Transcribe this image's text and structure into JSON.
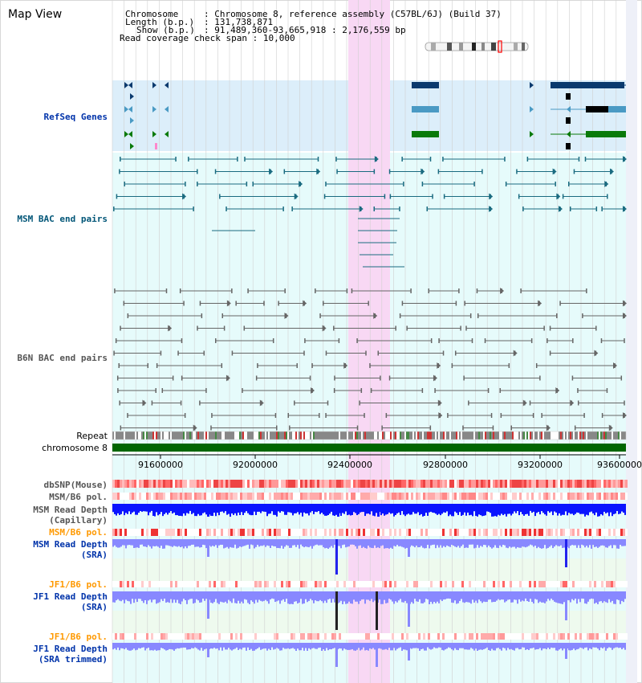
{
  "app_title": "Map View",
  "header": {
    "chromosome_label": "Chromosome",
    "chromosome_value": "Chromosome 8, reference assembly (C57BL/6J) (Build 37)",
    "length_label": "Length (b.p.)",
    "length_value": "131,738,871",
    "show_label": "Show (b.p.)",
    "show_value": "91,489,360-93,665,918 : 2,176,559 bp",
    "coverage_label": "Read coverage check span",
    "coverage_value": "10,000"
  },
  "tracks": {
    "refseq": "RefSeq Genes",
    "msm_bac": "MSM BAC end pairs",
    "b6n_bac": "B6N BAC end pairs",
    "repeat": "Repeat",
    "chromosome": "chromosome 8",
    "dbsnp": "dbSNP(Mouse)",
    "msm_b6_pol_1": "MSM/B6 pol.",
    "msm_read_depth_cap_1": "MSM Read Depth",
    "msm_read_depth_cap_2": "(Capillary)",
    "msm_b6_pol_2": "MSM/B6 pol.",
    "msm_read_depth_sra_1": "MSM Read Depth",
    "msm_read_depth_sra_2": "(SRA)",
    "jf1_b6_pol_1": "JF1/B6 pol.",
    "jf1_read_depth_sra_1": "JF1 Read Depth",
    "jf1_read_depth_sra_2": "(SRA)",
    "jf1_b6_pol_2": "JF1/B6 pol.",
    "jf1_read_depth_trim_1": "JF1 Read Depth",
    "jf1_read_depth_trim_2": "(SRA trimmed)"
  },
  "axis_ticks": [
    "91600000",
    "92000000",
    "92400000",
    "92800000",
    "93200000",
    "93600000"
  ],
  "colors": {
    "refseq_bg": "#dceefa",
    "track_bg": "#e6fbfb",
    "highlight": "#f8d8f4",
    "msm_bac": "#1a6b80",
    "b6n_bac": "#666666",
    "depth_blue": "#0a14ff",
    "depth_light": "#8888ff",
    "chromosome_green": "#006600",
    "label_blue": "#0033aa",
    "label_orange": "#ff9900"
  }
}
